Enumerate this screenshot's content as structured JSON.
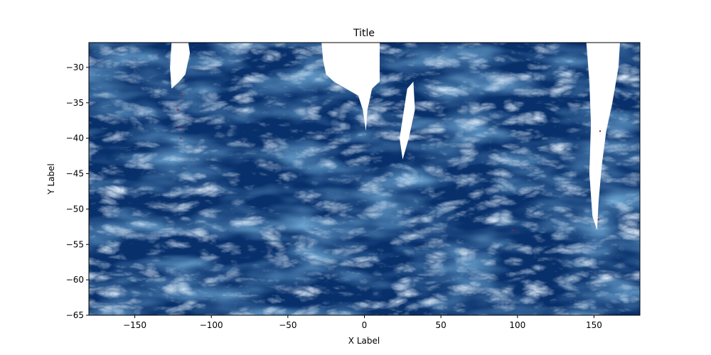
{
  "chart_data": {
    "type": "heatmap",
    "title": "Title",
    "xlabel": "X Label",
    "ylabel": "Y Label",
    "xlim": [
      -180,
      180
    ],
    "ylim": [
      -65,
      -26.5
    ],
    "x_ticks": [
      -150,
      -100,
      -50,
      0,
      50,
      100,
      150
    ],
    "x_tick_labels": [
      "−150",
      "−100",
      "−50",
      "0",
      "50",
      "100",
      "150"
    ],
    "y_ticks": [
      -30,
      -35,
      -40,
      -45,
      -50,
      -55,
      -60,
      -65
    ],
    "y_tick_labels": [
      "−30",
      "−35",
      "−40",
      "−45",
      "−50",
      "−55",
      "−60",
      "−65"
    ],
    "grid": false,
    "colors": {
      "field_base": "#08306b",
      "field_mid": "#2f6fb0",
      "field_high": "#e6f0fa",
      "extreme": "#b2182b",
      "no_data": "#ffffff"
    },
    "land_masks": [
      {
        "name": "",
        "outline": [
          [
            -126,
            -26.5
          ],
          [
            -115,
            -26.5
          ],
          [
            -114,
            -28
          ],
          [
            -117,
            -31
          ],
          [
            -121,
            -32
          ],
          [
            -126,
            -33
          ],
          [
            -127,
            -30
          ]
        ]
      },
      {
        "name": "",
        "outline": [
          [
            -28,
            -26.5
          ],
          [
            10,
            -26.5
          ],
          [
            10,
            -32
          ],
          [
            5,
            -33
          ],
          [
            2,
            -36
          ],
          [
            1,
            -39
          ],
          [
            -1,
            -36
          ],
          [
            -4,
            -34
          ],
          [
            -12,
            -33
          ],
          [
            -20,
            -32
          ],
          [
            -25,
            -31
          ],
          [
            -27,
            -29
          ]
        ]
      },
      {
        "name": "",
        "outline": [
          [
            28,
            -33
          ],
          [
            32,
            -32
          ],
          [
            33,
            -36
          ],
          [
            29,
            -40
          ],
          [
            25,
            -43
          ],
          [
            23,
            -40
          ]
        ]
      },
      {
        "name": "",
        "outline": [
          [
            145,
            -26.5
          ],
          [
            167,
            -26.5
          ],
          [
            166,
            -30
          ],
          [
            162,
            -35
          ],
          [
            158,
            -39
          ],
          [
            155,
            -44
          ],
          [
            153,
            -49
          ],
          [
            152,
            -53
          ],
          [
            149,
            -51
          ],
          [
            147,
            -45
          ],
          [
            148,
            -38
          ],
          [
            147,
            -32
          ]
        ]
      }
    ]
  }
}
